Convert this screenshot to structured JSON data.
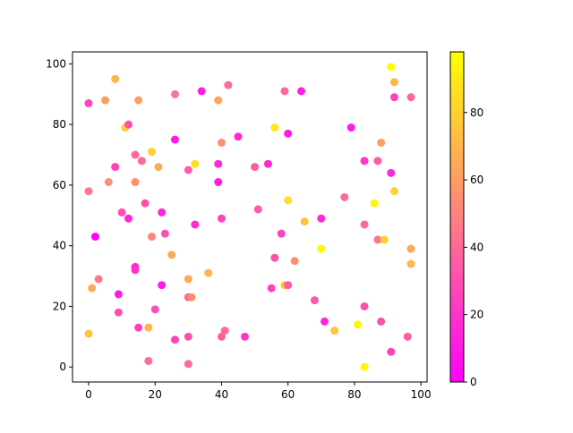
{
  "chart_data": {
    "type": "scatter",
    "colormap": "spring",
    "x": [
      0,
      2,
      0,
      1,
      0,
      3,
      5,
      8,
      6,
      8,
      11,
      12,
      10,
      12,
      9,
      9,
      15,
      14,
      16,
      14,
      17,
      14,
      14,
      15,
      18,
      18,
      19,
      21,
      19,
      22,
      23,
      20,
      22,
      26,
      26,
      25,
      26,
      34,
      30,
      32,
      32,
      30,
      30,
      31,
      30,
      30,
      36,
      39,
      42,
      40,
      39,
      39,
      40,
      41,
      40,
      45,
      47,
      50,
      51,
      54,
      56,
      56,
      55,
      59,
      64,
      60,
      60,
      58,
      59,
      60,
      62,
      65,
      70,
      70,
      68,
      71,
      74,
      77,
      79,
      83,
      83,
      83,
      81,
      83,
      86,
      87,
      88,
      87,
      89,
      88,
      91,
      92,
      91,
      91,
      92,
      92,
      97,
      97,
      97,
      96
    ],
    "y": [
      87,
      43,
      58,
      26,
      11,
      29,
      88,
      95,
      61,
      66,
      79,
      80,
      51,
      49,
      24,
      18,
      88,
      70,
      68,
      61,
      54,
      33,
      32,
      13,
      13,
      2,
      71,
      66,
      43,
      51,
      44,
      19,
      27,
      90,
      75,
      37,
      9,
      91,
      65,
      67,
      47,
      29,
      23,
      23,
      10,
      1,
      31,
      88,
      93,
      74,
      67,
      61,
      49,
      12,
      10,
      76,
      10,
      66,
      52,
      67,
      79,
      36,
      26,
      91,
      91,
      77,
      55,
      44,
      27,
      27,
      35,
      48,
      49,
      39,
      22,
      15,
      12,
      56,
      79,
      68,
      47,
      20,
      14,
      0,
      54,
      68,
      74,
      42,
      42,
      15,
      64,
      58,
      5,
      99,
      94,
      89,
      89,
      39,
      34,
      10
    ],
    "c": [
      25,
      0,
      45,
      65,
      75,
      45,
      60,
      70,
      55,
      25,
      80,
      30,
      30,
      15,
      10,
      30,
      60,
      40,
      40,
      55,
      30,
      15,
      20,
      25,
      70,
      40,
      80,
      65,
      50,
      15,
      30,
      30,
      10,
      45,
      10,
      65,
      25,
      10,
      35,
      85,
      15,
      65,
      40,
      55,
      30,
      40,
      70,
      65,
      40,
      55,
      15,
      10,
      25,
      40,
      35,
      15,
      20,
      35,
      35,
      15,
      90,
      30,
      25,
      40,
      10,
      10,
      85,
      25,
      75,
      35,
      55,
      75,
      15,
      95,
      35,
      15,
      75,
      40,
      10,
      20,
      40,
      30,
      95,
      95,
      95,
      35,
      60,
      45,
      80,
      30,
      15,
      80,
      25,
      98,
      70,
      25,
      40,
      65,
      70,
      35
    ],
    "xlim": [
      -4.85,
      101.85
    ],
    "ylim": [
      -4.95,
      103.95
    ],
    "clim": [
      0,
      98
    ],
    "xticks": [
      0,
      20,
      40,
      60,
      80,
      100
    ],
    "yticks": [
      0,
      20,
      40,
      60,
      80,
      100
    ],
    "cticks": [
      0,
      20,
      40,
      60,
      80
    ]
  }
}
